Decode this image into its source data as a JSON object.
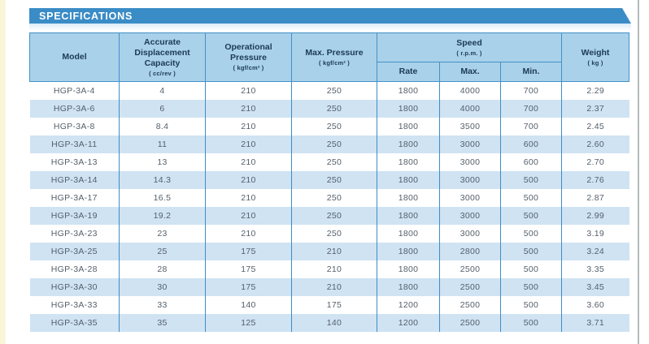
{
  "banner": {
    "label": "SPECIFICATIONS"
  },
  "colors": {
    "banner_blue": "#3a8cc6",
    "header_cell_bg": "#a9d1e9",
    "row_stripe_blue": "#cfe3f3",
    "table_border_blue": "#4391c9",
    "header_text": "#1c3a55",
    "body_text": "#545f6a",
    "page_edge_cream": "#f9f5d8"
  },
  "table": {
    "row_keys": [
      "model",
      "capacity",
      "op_pressure",
      "max_pressure",
      "speed_rate",
      "speed_max",
      "speed_min",
      "weight"
    ],
    "headers": {
      "model": {
        "label": "Model"
      },
      "capacity": {
        "label": "Accurate Displacement Capacity",
        "unit": "( cc/rev )"
      },
      "op_pressure": {
        "label": "Operational Pressure",
        "unit": "( kgf/cm² )"
      },
      "max_pressure": {
        "label": "Max. Pressure",
        "unit": "( kgf/cm² )"
      },
      "speed": {
        "label": "Speed",
        "unit": "( r.p.m. )",
        "sub": {
          "rate": "Rate",
          "max": "Max.",
          "min": "Min."
        }
      },
      "weight": {
        "label": "Weight",
        "unit": "( kg )"
      }
    },
    "rows": [
      {
        "model": "HGP-3A-4",
        "capacity": "4",
        "op_pressure": "210",
        "max_pressure": "250",
        "speed_rate": "1800",
        "speed_max": "4000",
        "speed_min": "700",
        "weight": "2.29"
      },
      {
        "model": "HGP-3A-6",
        "capacity": "6",
        "op_pressure": "210",
        "max_pressure": "250",
        "speed_rate": "1800",
        "speed_max": "4000",
        "speed_min": "700",
        "weight": "2.37"
      },
      {
        "model": "HGP-3A-8",
        "capacity": "8.4",
        "op_pressure": "210",
        "max_pressure": "250",
        "speed_rate": "1800",
        "speed_max": "3500",
        "speed_min": "700",
        "weight": "2.45"
      },
      {
        "model": "HGP-3A-11",
        "capacity": "11",
        "op_pressure": "210",
        "max_pressure": "250",
        "speed_rate": "1800",
        "speed_max": "3000",
        "speed_min": "600",
        "weight": "2.60"
      },
      {
        "model": "HGP-3A-13",
        "capacity": "13",
        "op_pressure": "210",
        "max_pressure": "250",
        "speed_rate": "1800",
        "speed_max": "3000",
        "speed_min": "600",
        "weight": "2.70"
      },
      {
        "model": "HGP-3A-14",
        "capacity": "14.3",
        "op_pressure": "210",
        "max_pressure": "250",
        "speed_rate": "1800",
        "speed_max": "3000",
        "speed_min": "500",
        "weight": "2.76"
      },
      {
        "model": "HGP-3A-17",
        "capacity": "16.5",
        "op_pressure": "210",
        "max_pressure": "250",
        "speed_rate": "1800",
        "speed_max": "3000",
        "speed_min": "500",
        "weight": "2.87"
      },
      {
        "model": "HGP-3A-19",
        "capacity": "19.2",
        "op_pressure": "210",
        "max_pressure": "250",
        "speed_rate": "1800",
        "speed_max": "3000",
        "speed_min": "500",
        "weight": "2.99"
      },
      {
        "model": "HGP-3A-23",
        "capacity": "23",
        "op_pressure": "210",
        "max_pressure": "250",
        "speed_rate": "1800",
        "speed_max": "3000",
        "speed_min": "500",
        "weight": "3.19"
      },
      {
        "model": "HGP-3A-25",
        "capacity": "25",
        "op_pressure": "175",
        "max_pressure": "210",
        "speed_rate": "1800",
        "speed_max": "2800",
        "speed_min": "500",
        "weight": "3.24"
      },
      {
        "model": "HGP-3A-28",
        "capacity": "28",
        "op_pressure": "175",
        "max_pressure": "210",
        "speed_rate": "1800",
        "speed_max": "2500",
        "speed_min": "500",
        "weight": "3.35"
      },
      {
        "model": "HGP-3A-30",
        "capacity": "30",
        "op_pressure": "175",
        "max_pressure": "210",
        "speed_rate": "1800",
        "speed_max": "2500",
        "speed_min": "500",
        "weight": "3.45"
      },
      {
        "model": "HGP-3A-33",
        "capacity": "33",
        "op_pressure": "140",
        "max_pressure": "175",
        "speed_rate": "1200",
        "speed_max": "2500",
        "speed_min": "500",
        "weight": "3.60"
      },
      {
        "model": "HGP-3A-35",
        "capacity": "35",
        "op_pressure": "125",
        "max_pressure": "140",
        "speed_rate": "1200",
        "speed_max": "2500",
        "speed_min": "500",
        "weight": "3.71"
      }
    ]
  }
}
